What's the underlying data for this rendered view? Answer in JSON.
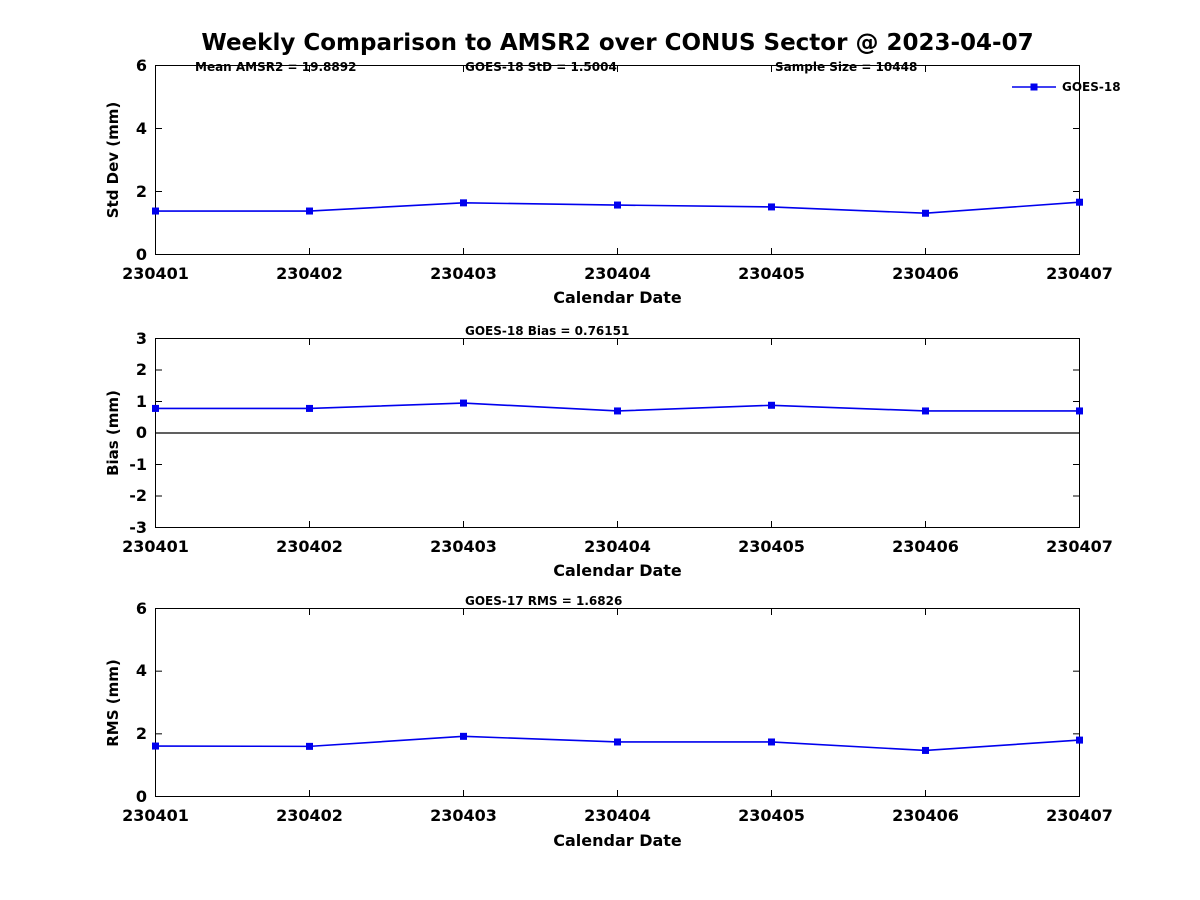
{
  "title": "Weekly Comparison to AMSR2 over CONUS Sector @ 2023-04-07",
  "legend": {
    "label": "GOES-18"
  },
  "colors": {
    "line": "#0000ee",
    "axis": "#000000",
    "background": "#ffffff"
  },
  "chart_data": [
    {
      "type": "line",
      "ylabel": "Std Dev (mm)",
      "xlabel": "Calendar Date",
      "ylim": [
        0,
        6
      ],
      "yticks": [
        0,
        2,
        4,
        6
      ],
      "zero_line": false,
      "grid": false,
      "legend_position": "top-right-outside",
      "annotations": [
        "Mean AMSR2 = 19.8892",
        "GOES-18 StD = 1.5004",
        "Sample Size = 10448"
      ],
      "categories": [
        "230401",
        "230402",
        "230403",
        "230404",
        "230405",
        "230406",
        "230407"
      ],
      "series": [
        {
          "name": "GOES-18",
          "values": [
            1.38,
            1.38,
            1.64,
            1.57,
            1.51,
            1.31,
            1.66
          ]
        }
      ]
    },
    {
      "type": "line",
      "ylabel": "Bias (mm)",
      "xlabel": "Calendar Date",
      "ylim": [
        -3,
        3
      ],
      "yticks": [
        -3,
        -2,
        -1,
        0,
        1,
        2,
        3
      ],
      "zero_line": true,
      "grid": false,
      "annotations": [
        "GOES-18 Bias  = 0.76151"
      ],
      "categories": [
        "230401",
        "230402",
        "230403",
        "230404",
        "230405",
        "230406",
        "230407"
      ],
      "series": [
        {
          "name": "GOES-18",
          "values": [
            0.78,
            0.78,
            0.95,
            0.7,
            0.88,
            0.7,
            0.7
          ]
        }
      ]
    },
    {
      "type": "line",
      "ylabel": "RMS (mm)",
      "xlabel": "Calendar Date",
      "ylim": [
        0,
        6
      ],
      "yticks": [
        0,
        2,
        4,
        6
      ],
      "zero_line": false,
      "grid": false,
      "annotations": [
        "GOES-17 RMS = 1.6826"
      ],
      "categories": [
        "230401",
        "230402",
        "230403",
        "230404",
        "230405",
        "230406",
        "230407"
      ],
      "series": [
        {
          "name": "GOES-18",
          "values": [
            1.61,
            1.6,
            1.92,
            1.74,
            1.74,
            1.47,
            1.8
          ]
        }
      ]
    }
  ]
}
